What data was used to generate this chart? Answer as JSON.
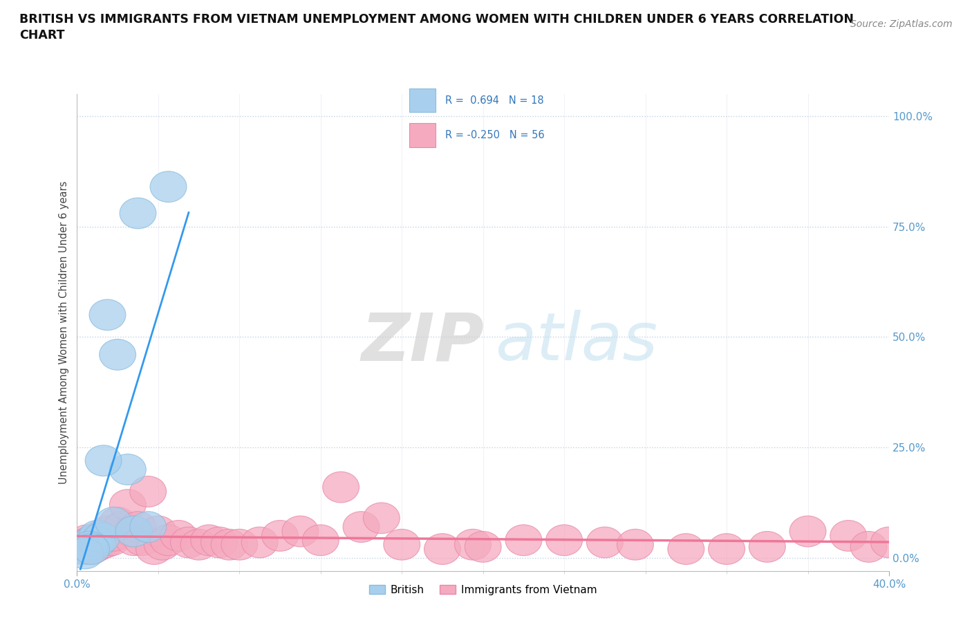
{
  "title": "BRITISH VS IMMIGRANTS FROM VIETNAM UNEMPLOYMENT AMONG WOMEN WITH CHILDREN UNDER 6 YEARS CORRELATION\nCHART",
  "source": "Source: ZipAtlas.com",
  "ylabel": "Unemployment Among Women with Children Under 6 years",
  "ytick_labels": [
    "0.0%",
    "25.0%",
    "50.0%",
    "75.0%",
    "100.0%"
  ],
  "ytick_values": [
    0,
    25,
    50,
    75,
    100
  ],
  "xlim": [
    0,
    40
  ],
  "ylim": [
    -3,
    105
  ],
  "watermark_zip": "ZIP",
  "watermark_atlas": "atlas",
  "british_color": "#A8D0EE",
  "vietnam_color": "#F5AABF",
  "british_edge": "#88BBDD",
  "vietnam_edge": "#E888A8",
  "trend_blue": "#3399EE",
  "trend_pink": "#EE7799",
  "british_x": [
    0.3,
    0.5,
    0.8,
    1.0,
    1.0,
    1.2,
    1.5,
    1.8,
    2.0,
    2.5,
    2.8,
    3.0,
    3.5,
    4.5,
    0.6,
    0.4,
    0.7,
    1.3
  ],
  "british_y": [
    2.0,
    3.0,
    4.0,
    5.0,
    3.5,
    4.5,
    55.0,
    8.0,
    46.0,
    20.0,
    6.0,
    78.0,
    7.0,
    84.0,
    2.5,
    1.0,
    2.0,
    22.0
  ],
  "vietnam_x": [
    0.2,
    0.3,
    0.4,
    0.5,
    0.6,
    0.7,
    0.8,
    0.9,
    1.0,
    1.1,
    1.2,
    1.4,
    1.5,
    1.7,
    1.8,
    2.0,
    2.2,
    2.5,
    2.7,
    2.8,
    3.0,
    3.2,
    3.5,
    3.8,
    4.0,
    4.2,
    4.5,
    5.0,
    5.5,
    6.0,
    6.5,
    7.0,
    7.5,
    8.0,
    9.0,
    10.0,
    11.0,
    12.0,
    13.0,
    14.0,
    15.0,
    16.0,
    18.0,
    19.5,
    20.0,
    22.0,
    24.0,
    26.0,
    27.5,
    30.0,
    32.0,
    34.0,
    36.0,
    38.0,
    39.0,
    40.0
  ],
  "vietnam_y": [
    3.0,
    2.5,
    2.0,
    4.0,
    3.5,
    2.0,
    3.0,
    2.5,
    4.0,
    3.0,
    5.0,
    3.5,
    6.0,
    4.0,
    5.0,
    8.0,
    7.0,
    12.0,
    6.0,
    4.0,
    7.0,
    4.0,
    15.0,
    2.0,
    6.0,
    3.0,
    4.0,
    5.0,
    3.5,
    3.0,
    4.0,
    3.5,
    3.0,
    3.0,
    3.5,
    5.0,
    6.0,
    4.0,
    16.0,
    7.0,
    9.0,
    3.0,
    2.0,
    3.0,
    2.5,
    4.0,
    4.0,
    3.5,
    3.0,
    2.0,
    2.0,
    2.5,
    6.0,
    5.0,
    2.5,
    3.5
  ]
}
